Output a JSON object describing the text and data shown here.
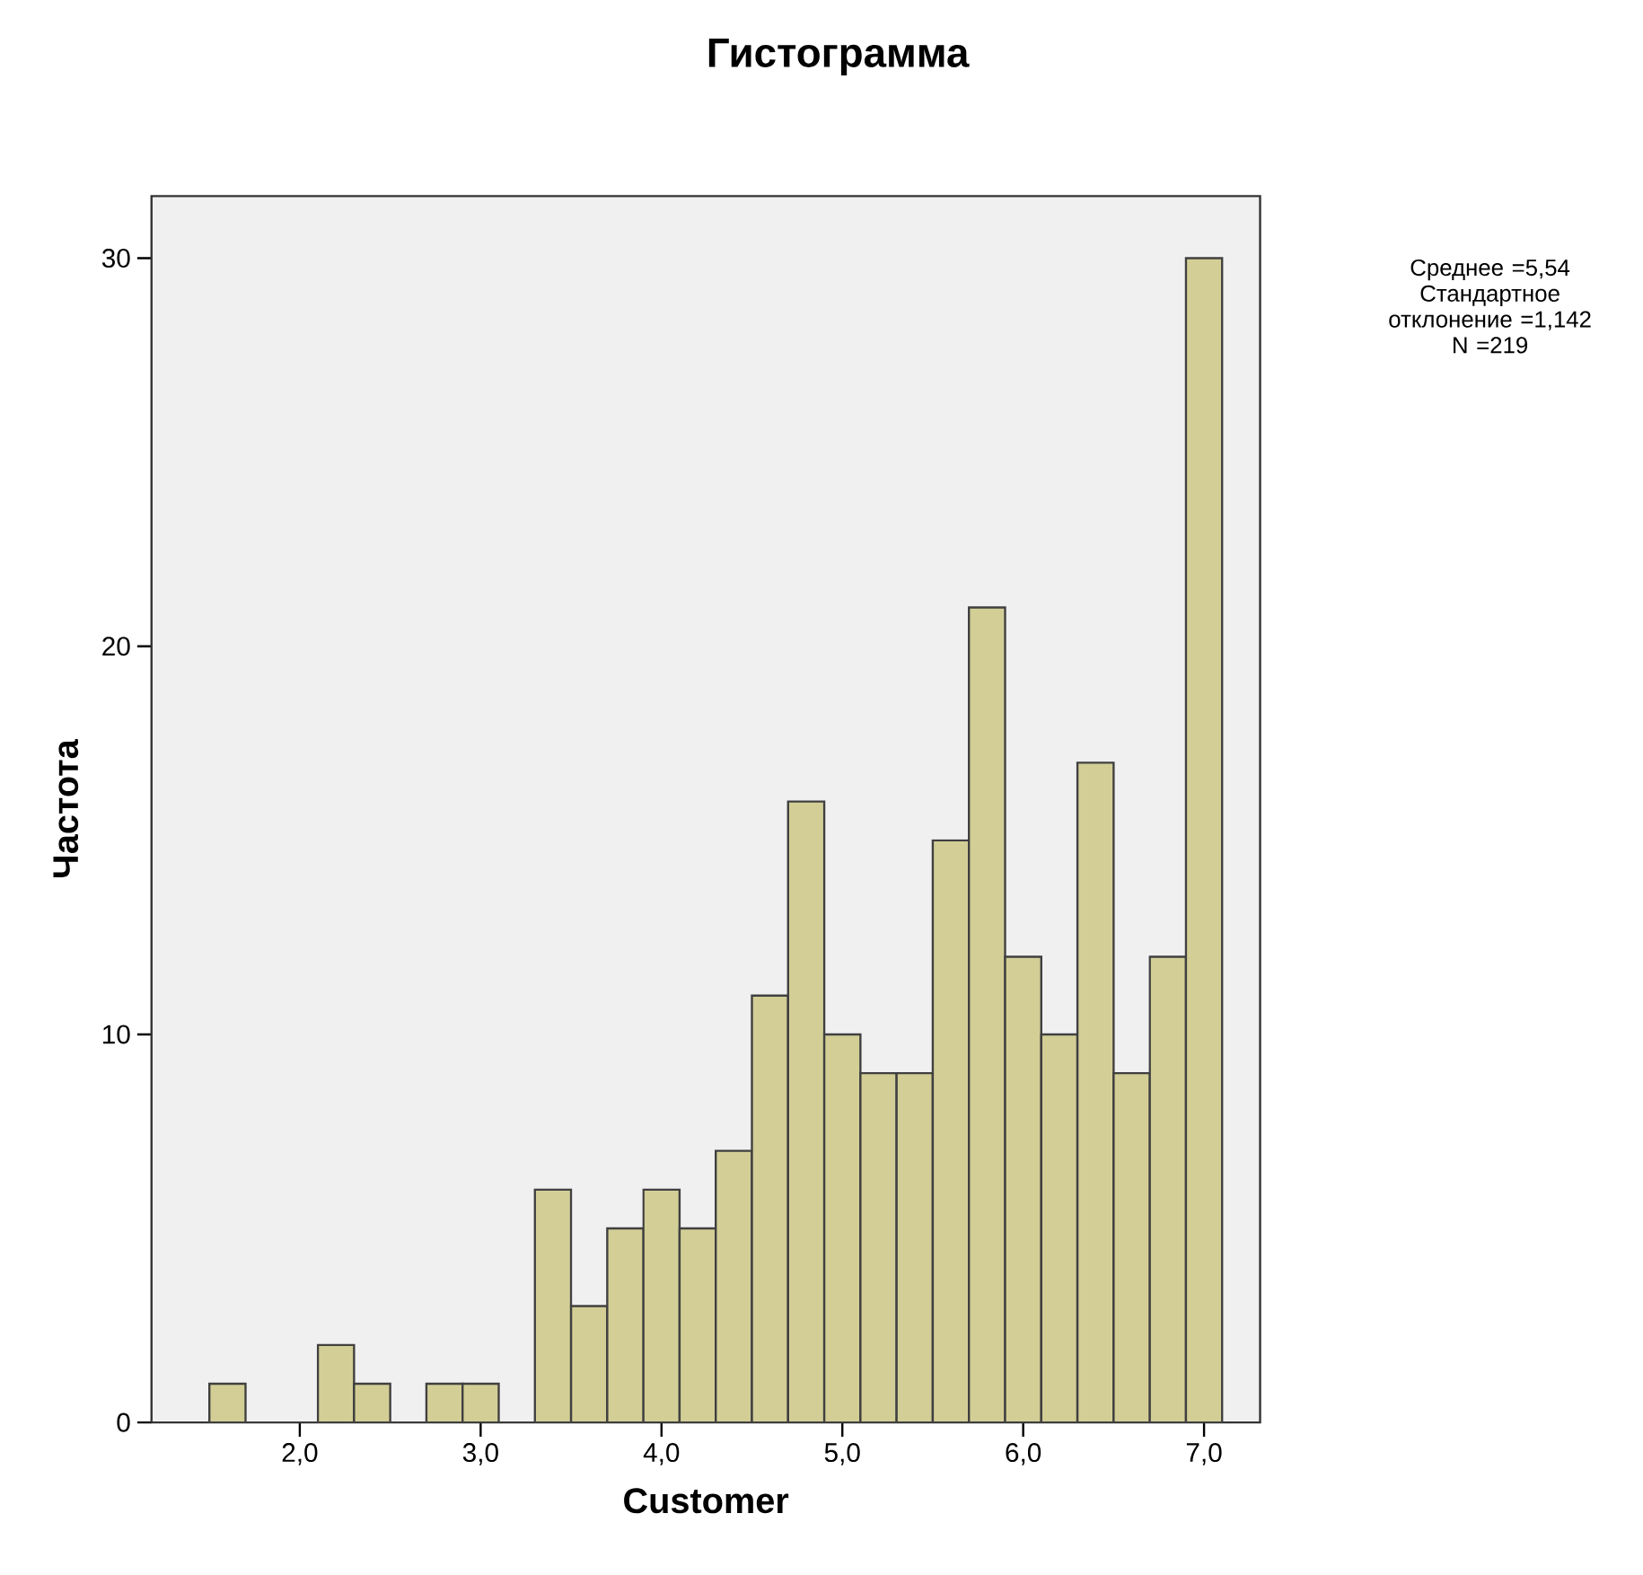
{
  "chart_data": {
    "type": "histogram",
    "title": "Гистограмма",
    "xlabel": "Customer",
    "ylabel": "Частота",
    "bins": [
      1.5,
      1.7,
      1.9,
      2.1,
      2.3,
      2.5,
      2.7,
      2.9,
      3.1,
      3.3,
      3.5,
      3.7,
      3.9,
      4.1,
      4.3,
      4.5,
      4.7,
      4.9,
      5.1,
      5.3,
      5.5,
      5.7,
      5.9,
      6.1,
      6.3,
      6.5,
      6.7,
      6.9,
      7.1
    ],
    "values": [
      1,
      0,
      0,
      2,
      1,
      0,
      1,
      1,
      0,
      6,
      3,
      5,
      6,
      5,
      7,
      11,
      16,
      10,
      9,
      9,
      15,
      21,
      12,
      10,
      17,
      9,
      12,
      30
    ],
    "color": "#d3ce96",
    "xlim": [
      1.18,
      7.31
    ],
    "ylim": [
      0,
      31.6
    ],
    "xticks": [
      {
        "value": 2,
        "label": "2,0"
      },
      {
        "value": 3,
        "label": "3,0"
      },
      {
        "value": 4,
        "label": "4,0"
      },
      {
        "value": 5,
        "label": "5,0"
      },
      {
        "value": 6,
        "label": "6,0"
      },
      {
        "value": 7,
        "label": "7,0"
      }
    ],
    "yticks": [
      0,
      10,
      20,
      30
    ],
    "annotations": [
      "Среднее =5,54",
      "Стандартное отклонение =1,142",
      "N =219"
    ]
  }
}
